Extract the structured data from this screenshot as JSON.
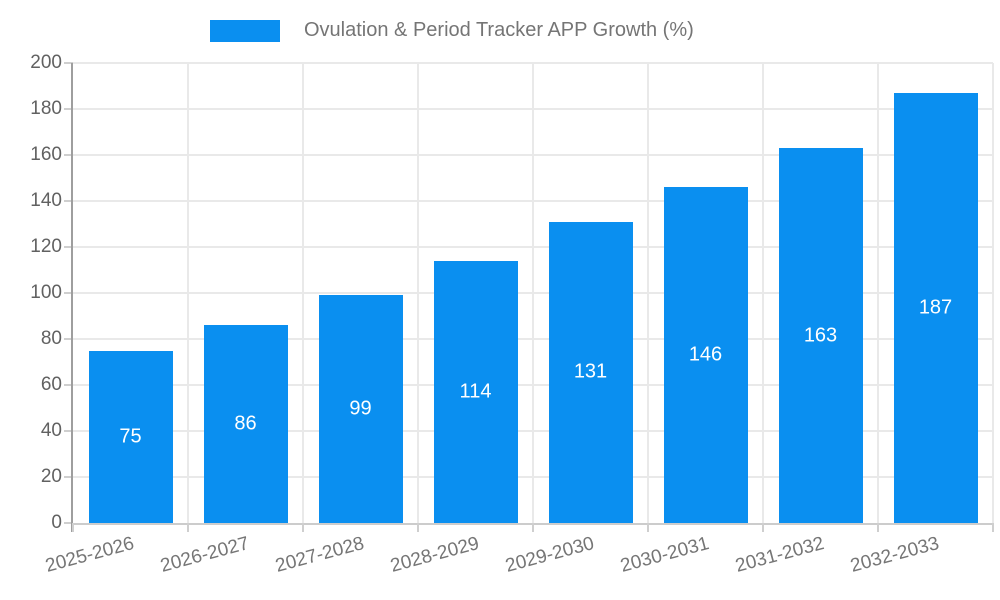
{
  "chart_data": {
    "type": "bar",
    "title": "Ovulation & Period Tracker APP Growth (%)",
    "categories": [
      "2025-2026",
      "2026-2027",
      "2027-2028",
      "2028-2029",
      "2029-2030",
      "2030-2031",
      "2031-2032",
      "2032-2033"
    ],
    "values": [
      75,
      86,
      99,
      114,
      131,
      146,
      163,
      187
    ],
    "xlabel": "",
    "ylabel": "",
    "ylim": [
      0,
      200
    ],
    "yticks": [
      0,
      20,
      40,
      60,
      80,
      100,
      120,
      140,
      160,
      180,
      200
    ],
    "grid": true,
    "legend_position": "top",
    "bar_color": "#0a8ff0",
    "value_label_color": "#ffffff",
    "axis_text_color": "#616161",
    "category_text_color": "#757575"
  }
}
